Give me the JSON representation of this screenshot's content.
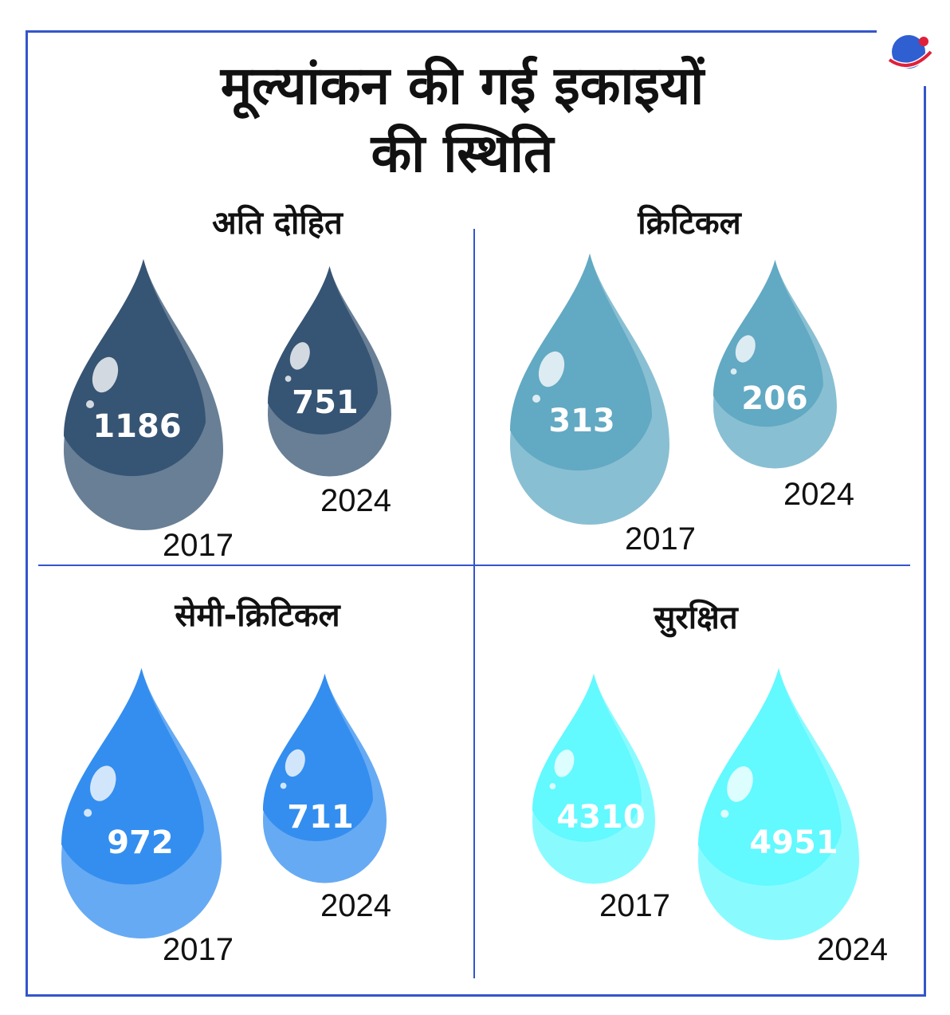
{
  "title_line1": "मूल्यांकन की गई इकाइयों",
  "title_line2": "की स्थिति",
  "logo_icon": "globe-swoosh-icon",
  "colors": {
    "frame": "#3355cc",
    "over_exploited": "#365473",
    "critical": "#62a9c3",
    "semi_critical": "#338eef",
    "safe": "#62f9ff"
  },
  "chart_data": {
    "type": "bar",
    "title": "मूल्यांकन की गई इकाइयों की स्थिति",
    "categories": [
      "अति दोहित",
      "क्रिटिकल",
      "सेमी-क्रिटिकल",
      "सुरक्षित"
    ],
    "series": [
      {
        "name": "2017",
        "values": [
          1186,
          313,
          972,
          4310
        ]
      },
      {
        "name": "2024",
        "values": [
          751,
          206,
          711,
          4951
        ]
      }
    ]
  },
  "quadrants": [
    {
      "title": "अति दोहित",
      "drops": [
        {
          "value": "1186",
          "year": "2017"
        },
        {
          "value": "751",
          "year": "2024"
        }
      ]
    },
    {
      "title": "क्रिटिकल",
      "drops": [
        {
          "value": "313",
          "year": "2017"
        },
        {
          "value": "206",
          "year": "2024"
        }
      ]
    },
    {
      "title": "सेमी-क्रिटिकल",
      "drops": [
        {
          "value": "972",
          "year": "2017"
        },
        {
          "value": "711",
          "year": "2024"
        }
      ]
    },
    {
      "title": "सुरक्षित",
      "drops": [
        {
          "value": "4310",
          "year": "2017"
        },
        {
          "value": "4951",
          "year": "2024"
        }
      ]
    }
  ]
}
